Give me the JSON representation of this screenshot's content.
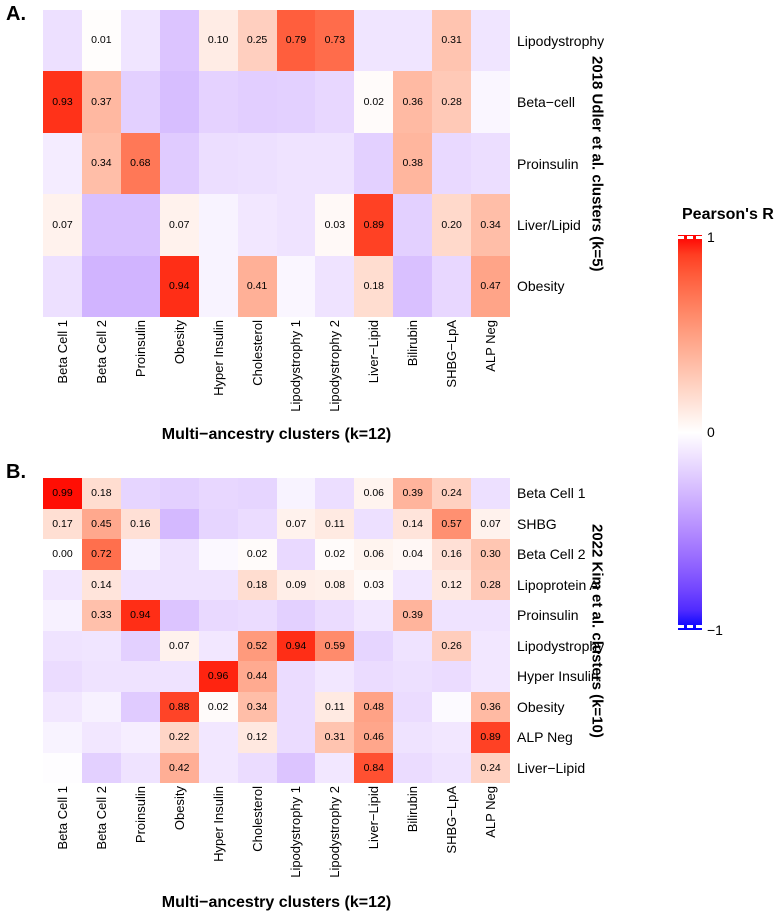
{
  "legend": {
    "title": "Pearson's R",
    "tick_labels": [
      "1",
      "0",
      "−1"
    ],
    "domain": [
      -1,
      1
    ],
    "high_color": "#FF0000",
    "mid_color": "#FFFFFF",
    "low_color": "#0000FF"
  },
  "chart_data": [
    {
      "type": "heatmap",
      "panel_label": "A.",
      "xlabel": "Multi−ancestry clusters (k=12)",
      "ylabel_right": "2018 Udler et al. clusters (k=5)",
      "x_categories": [
        "Beta Cell 1",
        "Beta Cell 2",
        "Proinsulin",
        "Obesity",
        "Hyper Insulin",
        "Cholesterol",
        "Lipodystrophy 1",
        "Lipodystrophy 2",
        "Liver−Lipid",
        "Bilirubin",
        "SHBG−LpA",
        "ALP Neg"
      ],
      "y_categories": [
        "Lipodystrophy",
        "Beta−cell",
        "Proinsulin",
        "Liver/Lipid",
        "Obesity"
      ],
      "values": [
        [
          -0.13,
          0.01,
          -0.11,
          -0.25,
          0.1,
          0.25,
          0.79,
          0.73,
          -0.11,
          -0.11,
          0.31,
          -0.11
        ],
        [
          0.93,
          0.37,
          -0.2,
          -0.28,
          -0.19,
          -0.21,
          -0.2,
          -0.17,
          0.02,
          0.36,
          0.28,
          -0.04
        ],
        [
          -0.08,
          0.34,
          0.68,
          -0.22,
          -0.14,
          -0.13,
          -0.12,
          -0.12,
          -0.2,
          0.38,
          -0.16,
          -0.14
        ],
        [
          0.07,
          -0.27,
          -0.27,
          0.07,
          -0.05,
          -0.1,
          -0.12,
          0.03,
          0.89,
          -0.2,
          0.2,
          0.34
        ],
        [
          -0.13,
          -0.32,
          -0.32,
          0.94,
          -0.05,
          0.41,
          -0.04,
          -0.12,
          0.18,
          -0.27,
          -0.17,
          0.47
        ]
      ],
      "cell_labels": [
        [
          "",
          "0.01",
          "",
          "",
          "0.10",
          "0.25",
          "0.79",
          "0.73",
          "",
          "",
          "0.31",
          ""
        ],
        [
          "0.93",
          "0.37",
          "",
          "",
          "",
          "",
          "",
          "",
          "0.02",
          "0.36",
          "0.28",
          ""
        ],
        [
          "",
          "0.34",
          "0.68",
          "",
          "",
          "",
          "",
          "",
          "",
          "0.38",
          "",
          ""
        ],
        [
          "0.07",
          "",
          "",
          "0.07",
          "",
          "",
          "",
          "0.03",
          "0.89",
          "",
          "0.20",
          "0.34"
        ],
        [
          "",
          "",
          "",
          "0.94",
          "",
          "0.41",
          "",
          "",
          "0.18",
          "",
          "",
          "0.47"
        ]
      ],
      "color_scale": {
        "name": "Pearson's R",
        "domain": [
          -1,
          1
        ],
        "low": "#0000FF",
        "mid": "#FFFFFF",
        "high": "#FF0000"
      }
    },
    {
      "type": "heatmap",
      "panel_label": "B.",
      "xlabel": "Multi−ancestry clusters (k=12)",
      "ylabel_right": "2022 Kim et al. clusters (k=10)",
      "x_categories": [
        "Beta Cell 1",
        "Beta Cell 2",
        "Proinsulin",
        "Obesity",
        "Hyper Insulin",
        "Cholesterol",
        "Lipodystrophy 1",
        "Lipodystrophy 2",
        "Liver−Lipid",
        "Bilirubin",
        "SHBG−LpA",
        "ALP Neg"
      ],
      "y_categories": [
        "Beta Cell 1",
        "SHBG",
        "Beta Cell 2",
        "Lipoprotein A",
        "Proinsulin",
        "Lipodystrophy",
        "Hyper Insulin",
        "Obesity",
        "ALP Neg",
        "Liver−Lipid"
      ],
      "values": [
        [
          0.99,
          0.18,
          -0.18,
          -0.2,
          -0.17,
          -0.18,
          -0.05,
          -0.14,
          0.06,
          0.39,
          0.24,
          -0.13
        ],
        [
          0.17,
          0.45,
          0.16,
          -0.3,
          -0.18,
          -0.15,
          0.07,
          0.11,
          -0.13,
          0.14,
          0.57,
          0.07
        ],
        [
          0.0,
          0.72,
          -0.06,
          -0.12,
          -0.03,
          0.02,
          -0.16,
          0.02,
          0.06,
          0.04,
          0.16,
          0.3
        ],
        [
          -0.1,
          0.14,
          -0.12,
          -0.12,
          -0.12,
          0.18,
          0.09,
          0.08,
          0.03,
          -0.1,
          0.12,
          0.28
        ],
        [
          -0.06,
          0.33,
          0.94,
          -0.25,
          -0.16,
          -0.15,
          -0.2,
          -0.15,
          -0.1,
          0.39,
          -0.12,
          -0.12
        ],
        [
          -0.12,
          -0.11,
          -0.2,
          0.07,
          -0.1,
          0.52,
          0.94,
          0.59,
          -0.18,
          -0.12,
          0.26,
          -0.1
        ],
        [
          -0.15,
          -0.12,
          -0.12,
          -0.12,
          0.96,
          0.44,
          -0.15,
          -0.1,
          -0.15,
          -0.13,
          -0.15,
          -0.1
        ],
        [
          -0.1,
          -0.06,
          -0.22,
          0.88,
          0.02,
          0.34,
          -0.15,
          0.11,
          0.48,
          -0.15,
          -0.02,
          0.36
        ],
        [
          -0.05,
          -0.1,
          -0.07,
          0.22,
          -0.1,
          0.12,
          -0.15,
          0.31,
          0.46,
          -0.12,
          -0.1,
          0.89
        ],
        [
          -0.01,
          -0.2,
          -0.12,
          0.42,
          -0.1,
          -0.15,
          -0.25,
          -0.1,
          0.84,
          -0.15,
          -0.12,
          0.24
        ]
      ],
      "cell_labels": [
        [
          "0.99",
          "0.18",
          "",
          "",
          "",
          "",
          "",
          "",
          "0.06",
          "0.39",
          "0.24",
          ""
        ],
        [
          "0.17",
          "0.45",
          "0.16",
          "",
          "",
          "",
          "0.07",
          "0.11",
          "",
          "0.14",
          "0.57",
          "0.07"
        ],
        [
          "0.00",
          "0.72",
          "",
          "",
          "",
          "0.02",
          "",
          "0.02",
          "0.06",
          "0.04",
          "0.16",
          "0.30"
        ],
        [
          "",
          "0.14",
          "",
          "",
          "",
          "0.18",
          "0.09",
          "0.08",
          "0.03",
          "",
          "0.12",
          "0.28"
        ],
        [
          "",
          "0.33",
          "0.94",
          "",
          "",
          "",
          "",
          "",
          "",
          "0.39",
          "",
          ""
        ],
        [
          "",
          "",
          "",
          "0.07",
          "",
          "0.52",
          "0.94",
          "0.59",
          "",
          "",
          "0.26",
          ""
        ],
        [
          "",
          "",
          "",
          "",
          "0.96",
          "0.44",
          "",
          "",
          "",
          "",
          "",
          ""
        ],
        [
          "",
          "",
          "",
          "0.88",
          "0.02",
          "0.34",
          "",
          "0.11",
          "0.48",
          "",
          "",
          "0.36"
        ],
        [
          "",
          "",
          "",
          "0.22",
          "",
          "0.12",
          "",
          "0.31",
          "0.46",
          "",
          "",
          "0.89"
        ],
        [
          "",
          "",
          "",
          "0.42",
          "",
          "",
          "",
          "",
          "0.84",
          "",
          "",
          "0.24"
        ]
      ],
      "color_scale": {
        "name": "Pearson's R",
        "domain": [
          -1,
          1
        ],
        "low": "#0000FF",
        "mid": "#FFFFFF",
        "high": "#FF0000"
      }
    }
  ]
}
